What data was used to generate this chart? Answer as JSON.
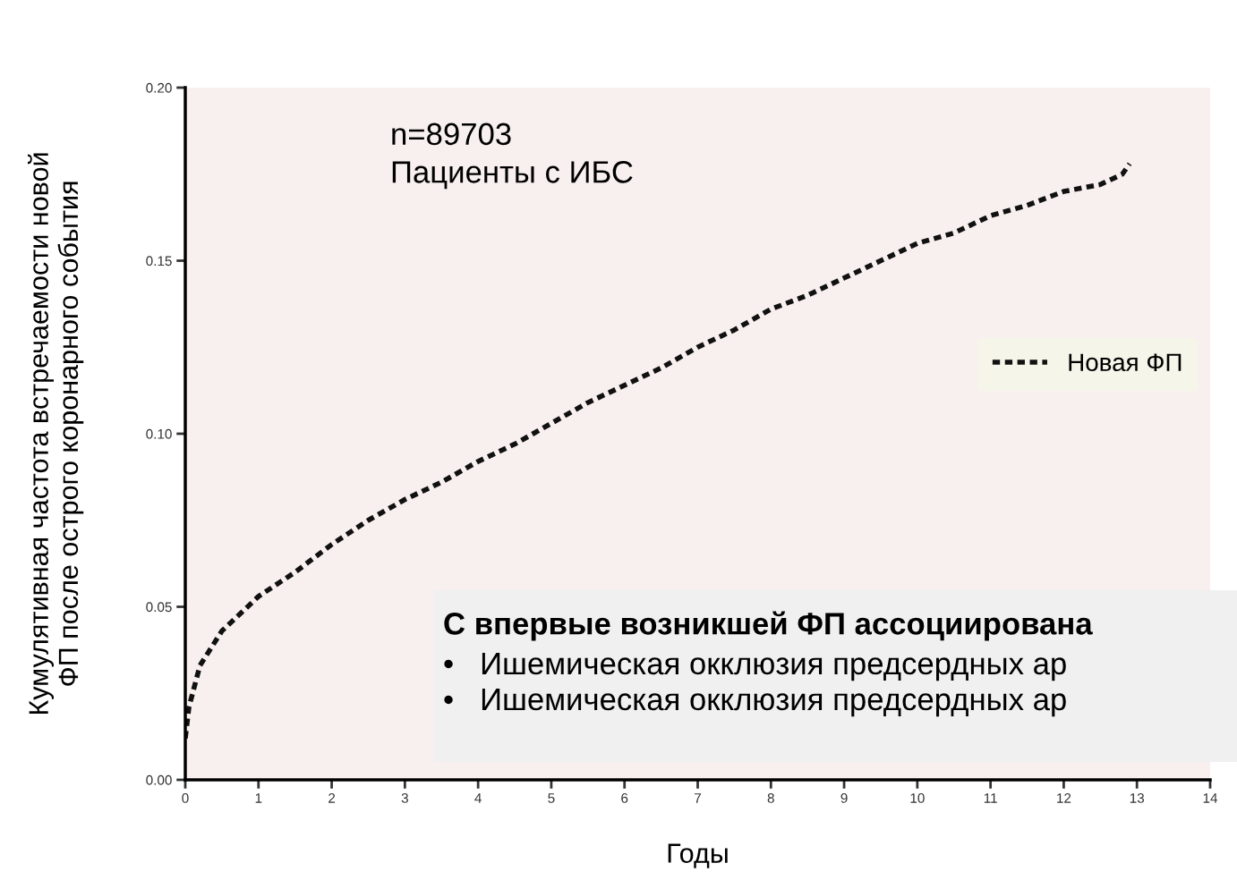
{
  "chart_data": {
    "type": "line",
    "xlabel": "Годы",
    "ylabel": "Кумулятивная частота встречаемости новой\nФП после острого коронарного события",
    "xlim": [
      0,
      14
    ],
    "ylim": [
      0,
      0.2
    ],
    "xticks": [
      0,
      1,
      2,
      3,
      4,
      5,
      6,
      7,
      8,
      9,
      10,
      11,
      12,
      13,
      14
    ],
    "yticks": [
      {
        "value": 0,
        "label": "0.00"
      },
      {
        "value": 0.05,
        "label": "0.05"
      },
      {
        "value": 0.1,
        "label": "0.10"
      },
      {
        "value": 0.15,
        "label": "0.15"
      },
      {
        "value": 0.2,
        "label": "0.20"
      }
    ],
    "series": [
      {
        "name": "Новая ФП",
        "color": "#111111",
        "x": [
          0,
          0.05,
          0.2,
          0.5,
          1,
          1.5,
          2,
          2.5,
          3,
          3.5,
          4,
          4.5,
          5,
          5.5,
          6,
          6.5,
          7,
          7.5,
          8,
          8.5,
          9,
          9.5,
          10,
          10.5,
          11,
          11.5,
          12,
          12.5,
          12.8,
          12.9
        ],
        "values": [
          0.012,
          0.021,
          0.033,
          0.043,
          0.053,
          0.06,
          0.068,
          0.075,
          0.081,
          0.086,
          0.092,
          0.097,
          0.103,
          0.109,
          0.114,
          0.119,
          0.125,
          0.13,
          0.136,
          0.14,
          0.145,
          0.15,
          0.155,
          0.158,
          0.163,
          0.166,
          0.17,
          0.172,
          0.175,
          0.178
        ]
      }
    ],
    "line_style": "dashed",
    "marker": "none",
    "grid": false,
    "legend": "right",
    "annotations": [
      "n=89703",
      "Пациенты с ИБС",
      "С впервые возникшей ФП ассоциирована",
      "•   Ишемическая окклюзия предсердных ар",
      "•   Ишемическая окклюзия предсердных ар"
    ]
  }
}
